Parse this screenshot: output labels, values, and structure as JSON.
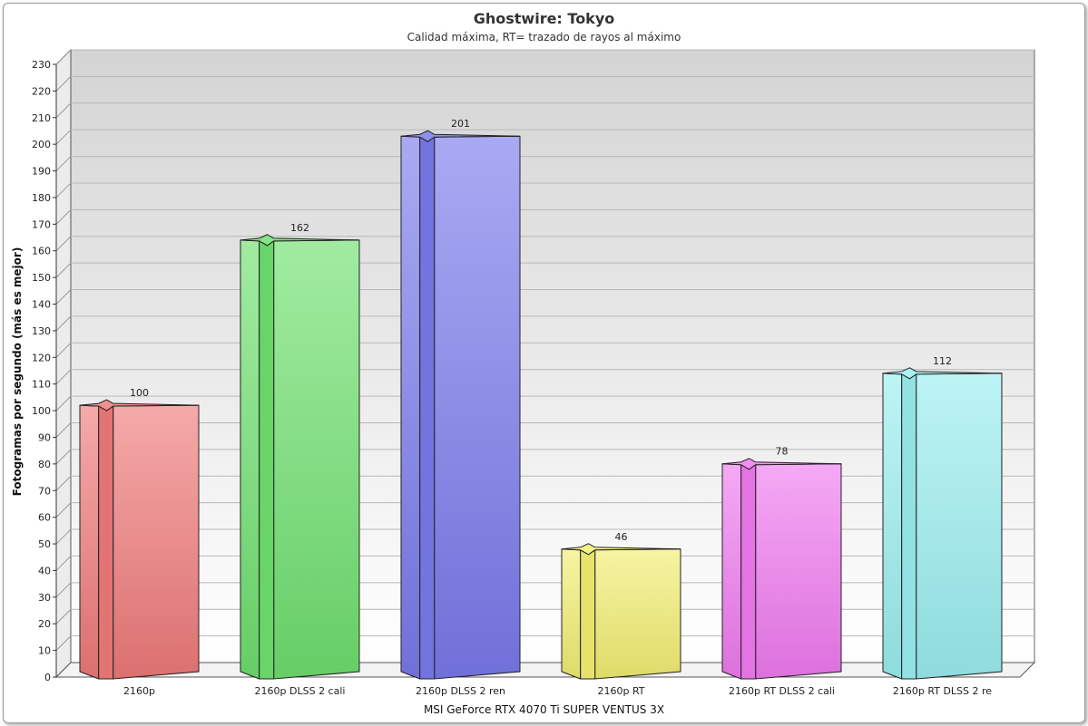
{
  "chart_data": {
    "type": "bar",
    "title": "Ghostwire: Tokyo",
    "subtitle": "Calidad máxima, RT= trazado de rayos al máximo",
    "xlabel": "MSI GeForce RTX 4070 Ti SUPER VENTUS 3X",
    "ylabel": "Fotogramas por segundo (más es mejor)",
    "ylim": [
      0,
      230
    ],
    "ytick_step": 10,
    "grid": true,
    "categories": [
      "2160p",
      "2160p DLSS 2 cali",
      "2160p DLSS 2 ren",
      "2160p RT",
      "2160p RT DLSS 2 cali",
      "2160p RT DLSS 2 re"
    ],
    "values": [
      100,
      162,
      201,
      46,
      78,
      112
    ],
    "colors": [
      "#ef7a7a",
      "#6fe06f",
      "#7a7aec",
      "#f2ee72",
      "#f07af0",
      "#9aeef0"
    ]
  }
}
